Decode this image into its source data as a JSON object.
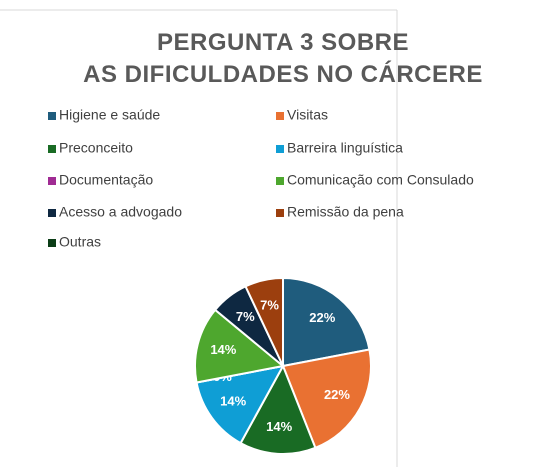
{
  "chart_data": {
    "type": "pie",
    "title": "PERGUNTA 3 SOBRE AS DIFICULDADES NO CÁRCERE",
    "categories": [
      "Higiene e saúde",
      "Visitas",
      "Preconceito",
      "Barreira linguística",
      "Documentação",
      "Comunicação com Consulado",
      "Acesso a advogado",
      "Remissão da pena",
      "Outras"
    ],
    "values": [
      22,
      22,
      14,
      14,
      0,
      14,
      7,
      7,
      0
    ],
    "value_labels": [
      "22%",
      "22%",
      "14%",
      "14%",
      "0%",
      "14%",
      "7%",
      "7%",
      null
    ],
    "colors": [
      "#1f5c7d",
      "#e97132",
      "#196b24",
      "#0f9ed5",
      "#a02b93",
      "#4ea72e",
      "#0e2841",
      "#9c3f0e",
      "#0b3d16"
    ],
    "legend": "top"
  }
}
